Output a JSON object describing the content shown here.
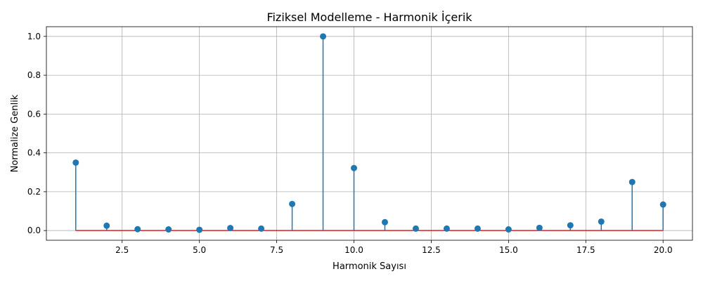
{
  "chart_data": {
    "type": "stem",
    "title": "Fiziksel Modelleme - Harmonik İçerik",
    "xlabel": "Harmonik Sayısı",
    "ylabel": "Normalize Genlik",
    "xlim": [
      0.05,
      20.95
    ],
    "ylim": [
      -0.05,
      1.05
    ],
    "xticks": [
      2.5,
      5.0,
      7.5,
      10.0,
      12.5,
      15.0,
      17.5,
      20.0
    ],
    "xtick_labels": [
      "2.5",
      "5.0",
      "7.5",
      "10.0",
      "12.5",
      "15.0",
      "17.5",
      "20.0"
    ],
    "yticks": [
      0.0,
      0.2,
      0.4,
      0.6,
      0.8,
      1.0
    ],
    "ytick_labels": [
      "0.0",
      "0.2",
      "0.4",
      "0.6",
      "0.8",
      "1.0"
    ],
    "grid": true,
    "colors": {
      "stem": "#1f77b4",
      "baseline": "#d62728",
      "grid": "#b0b0b0"
    },
    "x": [
      1,
      2,
      3,
      4,
      5,
      6,
      7,
      8,
      9,
      10,
      11,
      12,
      13,
      14,
      15,
      16,
      17,
      18,
      19,
      20
    ],
    "values": [
      0.35,
      0.025,
      0.007,
      0.006,
      0.004,
      0.013,
      0.01,
      0.137,
      1.0,
      0.322,
      0.043,
      0.01,
      0.01,
      0.01,
      0.006,
      0.014,
      0.027,
      0.046,
      0.25,
      0.134
    ]
  }
}
